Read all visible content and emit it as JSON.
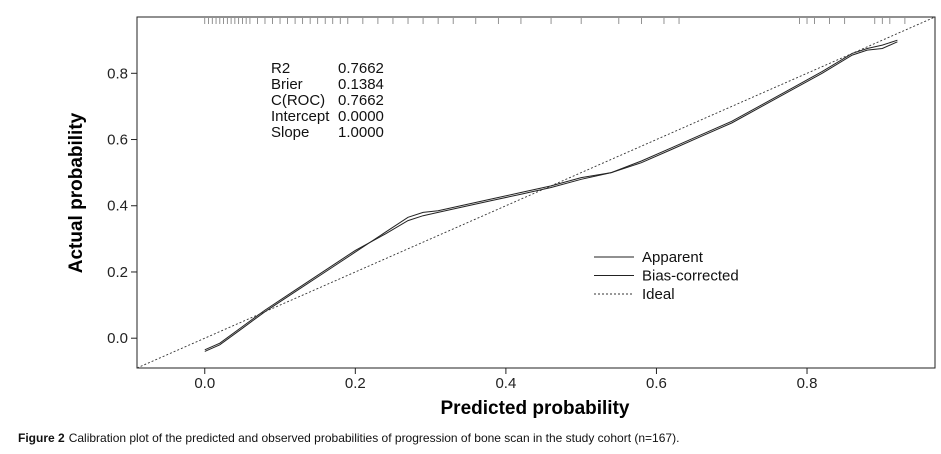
{
  "chart_data": {
    "type": "line",
    "xlabel": "Predicted probability",
    "ylabel": "Actual probability",
    "xlim": [
      -0.09,
      0.97
    ],
    "ylim": [
      -0.09,
      0.97
    ],
    "x_ticks": [
      "0.0",
      "0.2",
      "0.4",
      "0.6",
      "0.8"
    ],
    "y_ticks": [
      "0.0",
      "0.2",
      "0.4",
      "0.6",
      "0.8"
    ],
    "legend_position": "lower-right",
    "stats": [
      {
        "label": "R2",
        "value": "0.7662"
      },
      {
        "label": "Brier",
        "value": "0.1384"
      },
      {
        "label": "C(ROC)",
        "value": "0.7662"
      },
      {
        "label": "Intercept",
        "value": "0.0000"
      },
      {
        "label": "Slope",
        "value": "1.0000"
      }
    ],
    "series": [
      {
        "name": "Apparent",
        "style": "solid",
        "x": [
          0.0,
          0.02,
          0.05,
          0.08,
          0.12,
          0.16,
          0.2,
          0.24,
          0.27,
          0.29,
          0.31,
          0.34,
          0.38,
          0.42,
          0.46,
          0.5,
          0.54,
          0.58,
          0.62,
          0.66,
          0.7,
          0.74,
          0.78,
          0.82,
          0.86,
          0.88,
          0.9,
          0.92
        ],
        "y": [
          -0.04,
          -0.02,
          0.03,
          0.08,
          0.14,
          0.2,
          0.26,
          0.32,
          0.365,
          0.38,
          0.385,
          0.4,
          0.42,
          0.44,
          0.46,
          0.485,
          0.5,
          0.53,
          0.57,
          0.61,
          0.65,
          0.7,
          0.75,
          0.8,
          0.855,
          0.87,
          0.875,
          0.895
        ]
      },
      {
        "name": "Bias-corrected",
        "style": "solid",
        "x": [
          0.0,
          0.02,
          0.05,
          0.08,
          0.12,
          0.16,
          0.2,
          0.24,
          0.27,
          0.29,
          0.31,
          0.34,
          0.38,
          0.42,
          0.46,
          0.5,
          0.54,
          0.58,
          0.62,
          0.66,
          0.7,
          0.74,
          0.78,
          0.82,
          0.86,
          0.88,
          0.9,
          0.92
        ],
        "y": [
          -0.035,
          -0.015,
          0.035,
          0.085,
          0.145,
          0.205,
          0.265,
          0.315,
          0.355,
          0.37,
          0.38,
          0.395,
          0.415,
          0.435,
          0.455,
          0.48,
          0.5,
          0.535,
          0.575,
          0.615,
          0.655,
          0.705,
          0.755,
          0.805,
          0.86,
          0.875,
          0.885,
          0.9
        ]
      },
      {
        "name": "Ideal",
        "style": "dotted",
        "x": [
          -0.09,
          0.97
        ],
        "y": [
          -0.09,
          0.97
        ]
      }
    ],
    "rug_x": [
      0.0,
      0.005,
      0.01,
      0.015,
      0.02,
      0.025,
      0.03,
      0.035,
      0.04,
      0.045,
      0.05,
      0.055,
      0.06,
      0.07,
      0.08,
      0.09,
      0.1,
      0.11,
      0.12,
      0.13,
      0.14,
      0.15,
      0.16,
      0.17,
      0.18,
      0.19,
      0.21,
      0.23,
      0.25,
      0.27,
      0.29,
      0.31,
      0.33,
      0.36,
      0.39,
      0.42,
      0.46,
      0.5,
      0.55,
      0.58,
      0.61,
      0.63,
      0.79,
      0.8,
      0.81,
      0.83,
      0.85,
      0.89,
      0.9,
      0.91,
      0.93
    ]
  },
  "caption": {
    "label": "Figure 2",
    "text": "Calibration plot of the predicted and observed probabilities of progression of bone scan in the study cohort (n=167)."
  }
}
